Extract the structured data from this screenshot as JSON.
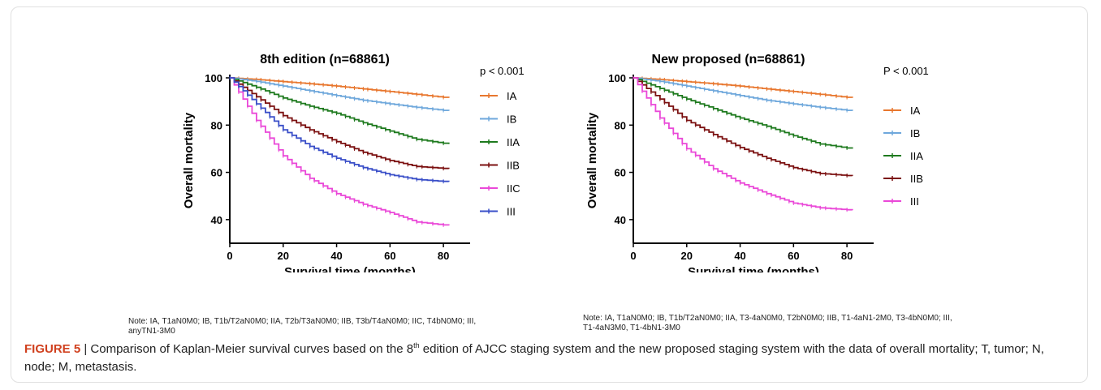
{
  "chart_data": [
    {
      "type": "line",
      "title": "8th edition (n=68861)",
      "xlabel": "Survival time (months)",
      "ylabel": "Overall mortality",
      "xlim": [
        0,
        90
      ],
      "ylim": [
        30,
        100
      ],
      "xticks": [
        0,
        20,
        40,
        60,
        80
      ],
      "yticks": [
        40,
        60,
        80,
        100
      ],
      "x_tick_labels": [
        "0",
        "20",
        "40",
        "60",
        "80"
      ],
      "y_tick_labels": [
        "40",
        "60",
        "80",
        "100"
      ],
      "pvalue_label": "p < 0.001",
      "legend_position": "right",
      "grid": false,
      "series": [
        {
          "name": "IA",
          "color": "#e8772e",
          "x": [
            0,
            10,
            20,
            30,
            40,
            50,
            60,
            70,
            82
          ],
          "y": [
            100,
            99.3,
            98.4,
            97.5,
            96.5,
            95.3,
            94.2,
            93,
            91.5
          ]
        },
        {
          "name": "IB",
          "color": "#6fa8dc",
          "x": [
            0,
            10,
            20,
            30,
            40,
            50,
            60,
            70,
            82
          ],
          "y": [
            100,
            98.5,
            96.5,
            94.5,
            92.5,
            90.5,
            89,
            87.5,
            86
          ]
        },
        {
          "name": "IIA",
          "color": "#1e7a1e",
          "x": [
            0,
            10,
            20,
            30,
            40,
            50,
            60,
            70,
            82
          ],
          "y": [
            100,
            96,
            91.5,
            88,
            85,
            81,
            77.5,
            74,
            72
          ]
        },
        {
          "name": "IIB",
          "color": "#7b1010",
          "x": [
            0,
            10,
            20,
            30,
            40,
            50,
            60,
            70,
            82
          ],
          "y": [
            100,
            92,
            84,
            78,
            73,
            68.5,
            65,
            62.5,
            61.5
          ]
        },
        {
          "name": "IIC",
          "color": "#ea48d8",
          "x": [
            0,
            10,
            20,
            30,
            40,
            50,
            60,
            70,
            82
          ],
          "y": [
            100,
            82,
            67,
            57.5,
            51,
            46.5,
            43,
            39,
            37.5
          ]
        },
        {
          "name": "III",
          "color": "#3a4fc8",
          "x": [
            0,
            10,
            20,
            30,
            40,
            50,
            60,
            70,
            82
          ],
          "y": [
            100,
            89,
            78,
            71,
            66,
            62,
            59,
            57,
            56
          ]
        }
      ]
    },
    {
      "type": "line",
      "title": "New proposed (n=68861)",
      "xlabel": "Survival time (months)",
      "ylabel": "Overall mortality",
      "xlim": [
        0,
        90
      ],
      "ylim": [
        30,
        100
      ],
      "xticks": [
        0,
        20,
        40,
        60,
        80
      ],
      "yticks": [
        40,
        60,
        80,
        100
      ],
      "x_tick_labels": [
        "0",
        "20",
        "40",
        "60",
        "80"
      ],
      "y_tick_labels": [
        "40",
        "60",
        "80",
        "100"
      ],
      "pvalue_label": "P < 0.001",
      "legend_position": "right",
      "grid": false,
      "series": [
        {
          "name": "IA",
          "color": "#e8772e",
          "x": [
            0,
            10,
            20,
            30,
            40,
            50,
            60,
            70,
            82
          ],
          "y": [
            100,
            99.3,
            98.4,
            97.5,
            96.5,
            95.3,
            94.2,
            93,
            91.5
          ]
        },
        {
          "name": "IB",
          "color": "#6fa8dc",
          "x": [
            0,
            10,
            20,
            30,
            40,
            50,
            60,
            70,
            82
          ],
          "y": [
            100,
            98.5,
            96.5,
            94.5,
            92.5,
            90.5,
            89,
            87.5,
            86
          ]
        },
        {
          "name": "IIA",
          "color": "#1e7a1e",
          "x": [
            0,
            10,
            20,
            30,
            40,
            50,
            60,
            70,
            82
          ],
          "y": [
            100,
            95.5,
            91,
            87,
            83,
            79.5,
            75.5,
            72,
            70
          ]
        },
        {
          "name": "IIB",
          "color": "#7b1010",
          "x": [
            0,
            10,
            20,
            30,
            40,
            50,
            60,
            70,
            82
          ],
          "y": [
            100,
            91,
            82,
            76,
            70.5,
            66,
            62,
            59.5,
            58.5
          ]
        },
        {
          "name": "III",
          "color": "#ea48d8",
          "x": [
            0,
            10,
            20,
            30,
            40,
            50,
            60,
            70,
            82
          ],
          "y": [
            100,
            83,
            70,
            61.5,
            55.5,
            51,
            47,
            45,
            44
          ]
        }
      ]
    }
  ],
  "notes": [
    "Note: IA, T1aN0M0; IB, T1b/T2aN0M0; IIA, T2b/T3aN0M0;  IIB, T3b/T4aN0M0; IIC, T4bN0M0; III, anyTN1-3M0",
    "Note: IA, T1aN0M0; IB, T1b/T2aN0M0; IIA, T3-4aN0M0, T2bN0M0; IIB, T1-4aN1-2M0, T3-4bN0M0; III, T1-4aN3M0, T1-4bN1-3M0"
  ],
  "caption": {
    "label": "FIGURE 5",
    "separator": " | ",
    "text_before": "Comparison of Kaplan-Meier survival curves based on the 8",
    "superscript": "th",
    "text_after": " edition of AJCC staging system and the new proposed staging system with the data of overall mortality; T, tumor; N, node; M, metastasis."
  }
}
